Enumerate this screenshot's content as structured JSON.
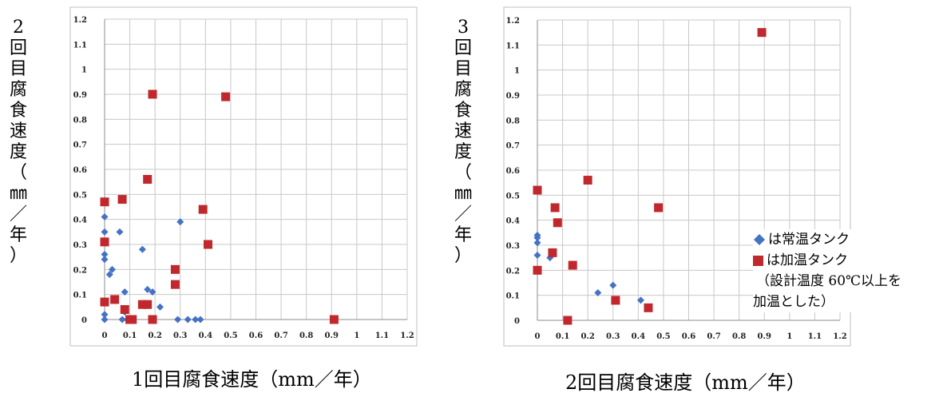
{
  "chart_data": [
    {
      "type": "scatter",
      "title": "",
      "ylabel": "2回目腐食速度（㎜／年）",
      "xlabel": "1回目腐食速度（mm／年）",
      "xlim": [
        0,
        1.2
      ],
      "ylim": [
        0,
        1.2
      ],
      "xticks": [
        "0",
        "0.1",
        "0.2",
        "0.3",
        "0.4",
        "0.5",
        "0.6",
        "0.7",
        "0.8",
        "0.9",
        "1",
        "1.1",
        "1.2"
      ],
      "yticks": [
        "0",
        "0.1",
        "0.2",
        "0.3",
        "0.4",
        "0.5",
        "0.6",
        "0.7",
        "0.8",
        "0.9",
        "1",
        "1.1",
        "1.2"
      ],
      "grid": true,
      "series": [
        {
          "name": "常温タンク",
          "marker": "diamond",
          "color": "#4472C4",
          "points": [
            [
              0.0,
              0.41
            ],
            [
              0.0,
              0.35
            ],
            [
              0.0,
              0.26
            ],
            [
              0.0,
              0.24
            ],
            [
              0.0,
              0.02
            ],
            [
              0.0,
              0.0
            ],
            [
              0.02,
              0.18
            ],
            [
              0.03,
              0.2
            ],
            [
              0.06,
              0.35
            ],
            [
              0.08,
              0.11
            ],
            [
              0.08,
              0.03
            ],
            [
              0.07,
              0.0
            ],
            [
              0.09,
              0.0
            ],
            [
              0.15,
              0.28
            ],
            [
              0.17,
              0.12
            ],
            [
              0.19,
              0.11
            ],
            [
              0.22,
              0.05
            ],
            [
              0.29,
              0.0
            ],
            [
              0.3,
              0.39
            ],
            [
              0.33,
              0.0
            ],
            [
              0.36,
              0.0
            ],
            [
              0.38,
              0.0
            ]
          ]
        },
        {
          "name": "加温タンク",
          "marker": "square",
          "color": "#C0282D",
          "points": [
            [
              0.0,
              0.47
            ],
            [
              0.0,
              0.31
            ],
            [
              0.0,
              0.07
            ],
            [
              0.04,
              0.08
            ],
            [
              0.07,
              0.48
            ],
            [
              0.08,
              0.04
            ],
            [
              0.1,
              0.0
            ],
            [
              0.11,
              0.0
            ],
            [
              0.15,
              0.06
            ],
            [
              0.17,
              0.06
            ],
            [
              0.17,
              0.56
            ],
            [
              0.19,
              0.9
            ],
            [
              0.19,
              0.0
            ],
            [
              0.28,
              0.2
            ],
            [
              0.28,
              0.14
            ],
            [
              0.39,
              0.44
            ],
            [
              0.41,
              0.3
            ],
            [
              0.48,
              0.89
            ],
            [
              0.91,
              0.0
            ]
          ]
        }
      ]
    },
    {
      "type": "scatter",
      "title": "",
      "ylabel": "3回目腐食速度（㎜／年）",
      "xlabel": "2回目腐食速度（mm／年）",
      "xlim": [
        0,
        1.2
      ],
      "ylim": [
        0,
        1.2
      ],
      "xticks": [
        "0",
        "0.1",
        "0.2",
        "0.3",
        "0.4",
        "0.5",
        "0.6",
        "0.7",
        "0.8",
        "0.9",
        "1",
        "1.1",
        "1.2"
      ],
      "yticks": [
        "0",
        "0.1",
        "0.2",
        "0.3",
        "0.4",
        "0.5",
        "0.6",
        "0.7",
        "0.8",
        "0.9",
        "1",
        "1.1",
        "1.2"
      ],
      "grid": true,
      "legend": {
        "position": "right",
        "items": [
          {
            "text": "は常温タンク",
            "marker": "diamond",
            "color": "#4472C4"
          },
          {
            "text": "は加温タンク",
            "marker": "square",
            "color": "#C0282D"
          }
        ],
        "note_line1": "（設計温度 60℃以上を",
        "note_line2": "加温とした）"
      },
      "series": [
        {
          "name": "常温タンク",
          "marker": "diamond",
          "color": "#4472C4",
          "points": [
            [
              0.0,
              0.34
            ],
            [
              0.0,
              0.33
            ],
            [
              0.0,
              0.31
            ],
            [
              0.0,
              0.26
            ],
            [
              0.05,
              0.25
            ],
            [
              0.12,
              0.0
            ],
            [
              0.24,
              0.11
            ],
            [
              0.3,
              0.14
            ],
            [
              0.41,
              0.08
            ]
          ]
        },
        {
          "name": "加温タンク",
          "marker": "square",
          "color": "#C0282D",
          "points": [
            [
              0.0,
              0.52
            ],
            [
              0.0,
              0.2
            ],
            [
              0.06,
              0.27
            ],
            [
              0.07,
              0.45
            ],
            [
              0.08,
              0.39
            ],
            [
              0.12,
              0.0
            ],
            [
              0.14,
              0.22
            ],
            [
              0.2,
              0.56
            ],
            [
              0.31,
              0.08
            ],
            [
              0.44,
              0.05
            ],
            [
              0.48,
              0.45
            ],
            [
              0.89,
              1.15
            ]
          ]
        }
      ]
    }
  ]
}
